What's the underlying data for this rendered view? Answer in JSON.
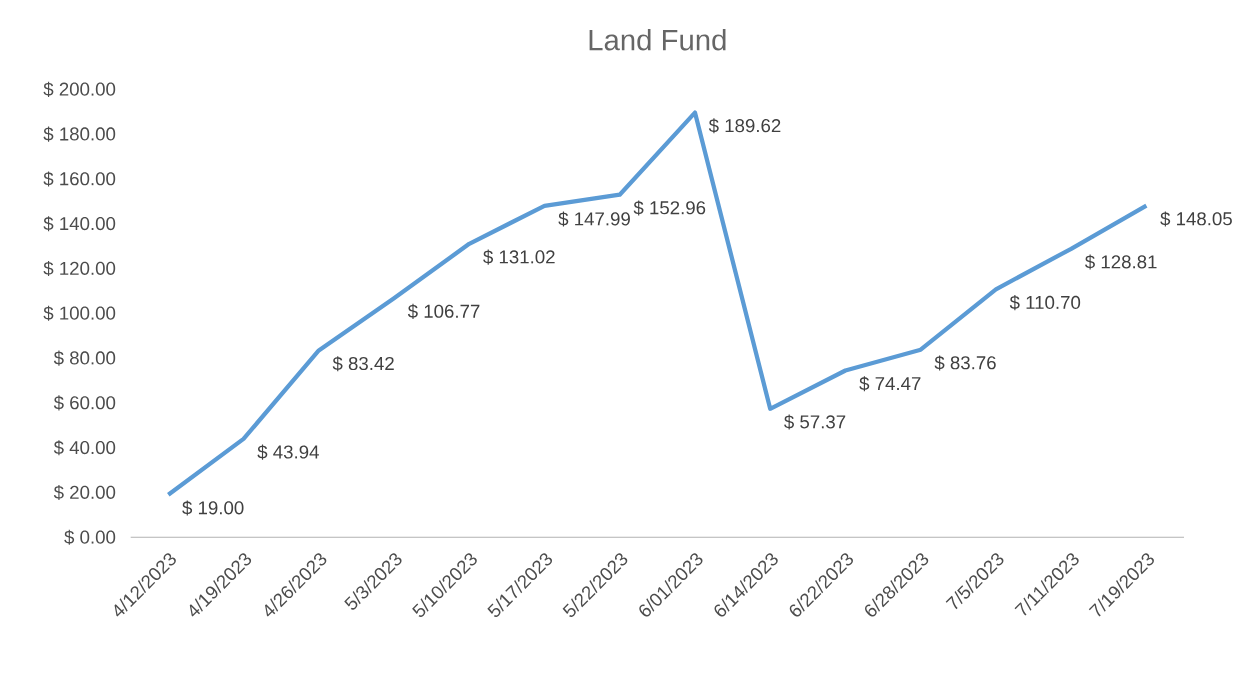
{
  "chart_data": {
    "type": "line",
    "title": "Land Fund",
    "categories": [
      "4/12/2023",
      "4/19/2023",
      "4/26/2023",
      "5/3/2023",
      "5/10/2023",
      "5/17/2023",
      "5/22/2023",
      "6/01/2023",
      "6/14/2023",
      "6/22/2023",
      "6/28/2023",
      "7/5/2023",
      "7/11/2023",
      "7/19/2023"
    ],
    "series": [
      {
        "color": "#5b9bd5",
        "values": [
          19.0,
          43.94,
          83.42,
          106.77,
          131.02,
          147.99,
          152.96,
          189.62,
          57.37,
          74.47,
          83.76,
          110.7,
          128.81,
          148.05
        ],
        "value_labels": [
          "$ 19.00",
          "$ 43.94",
          "$ 83.42",
          "$ 106.77",
          "$ 131.02",
          "$ 147.99",
          "$ 152.96",
          "$ 189.62",
          "$ 57.37",
          "$ 74.47",
          "$ 83.76",
          "$ 110.70",
          "$ 128.81",
          "$ 148.05"
        ]
      }
    ],
    "ylim": [
      0,
      200
    ],
    "yticks": [
      {
        "value": 0,
        "label": "$ 0.00"
      },
      {
        "value": 20,
        "label": "$ 20.00"
      },
      {
        "value": 40,
        "label": "$ 40.00"
      },
      {
        "value": 60,
        "label": "$ 60.00"
      },
      {
        "value": 80,
        "label": "$ 80.00"
      },
      {
        "value": 100,
        "label": "$ 100.00"
      },
      {
        "value": 120,
        "label": "$ 120.00"
      },
      {
        "value": 140,
        "label": "$ 140.00"
      },
      {
        "value": 160,
        "label": "$ 160.00"
      },
      {
        "value": 180,
        "label": "$ 180.00"
      },
      {
        "value": 200,
        "label": "$ 200.00"
      }
    ],
    "grid": false,
    "marker": "none",
    "line_style": "solid"
  }
}
